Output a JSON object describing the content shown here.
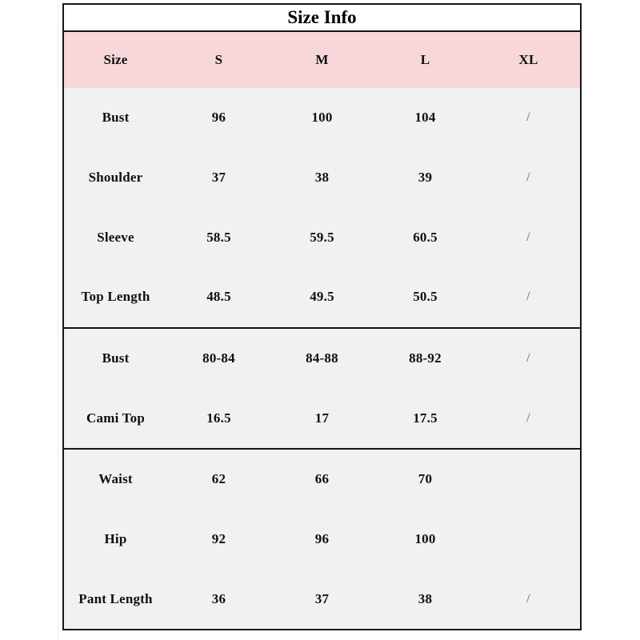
{
  "chart_data": {
    "type": "table",
    "title": "Size Info",
    "columns": [
      "Size",
      "S",
      "M",
      "L",
      "XL"
    ],
    "rows": [
      [
        "Bust",
        "96",
        "100",
        "104",
        "/"
      ],
      [
        "Shoulder",
        "37",
        "38",
        "39",
        "/"
      ],
      [
        "Sleeve",
        "58.5",
        "59.5",
        "60.5",
        "/"
      ],
      [
        "Top Length",
        "48.5",
        "49.5",
        "50.5",
        "/"
      ],
      [
        "Bust",
        "80-84",
        "84-88",
        "88-92",
        "/"
      ],
      [
        "Cami Top",
        "16.5",
        "17",
        "17.5",
        "/"
      ],
      [
        "Waist",
        "62",
        "66",
        "70",
        ""
      ],
      [
        "Hip",
        "92",
        "96",
        "100",
        ""
      ],
      [
        "Pant Length",
        "36",
        "37",
        "38",
        "/"
      ]
    ],
    "layout_hints": {
      "section_row_groups": [
        [
          0,
          1,
          2,
          3
        ],
        [
          4,
          5
        ],
        [
          6,
          7,
          8
        ]
      ],
      "grid": "section separators only, no inner gridlines"
    }
  },
  "colors": {
    "header_bg": "#f8d7da",
    "body_bg": "#f1f1f1",
    "border": "#171717",
    "title_bg": "#ffffff",
    "text": "#101010",
    "slash_text": "#50606e"
  }
}
